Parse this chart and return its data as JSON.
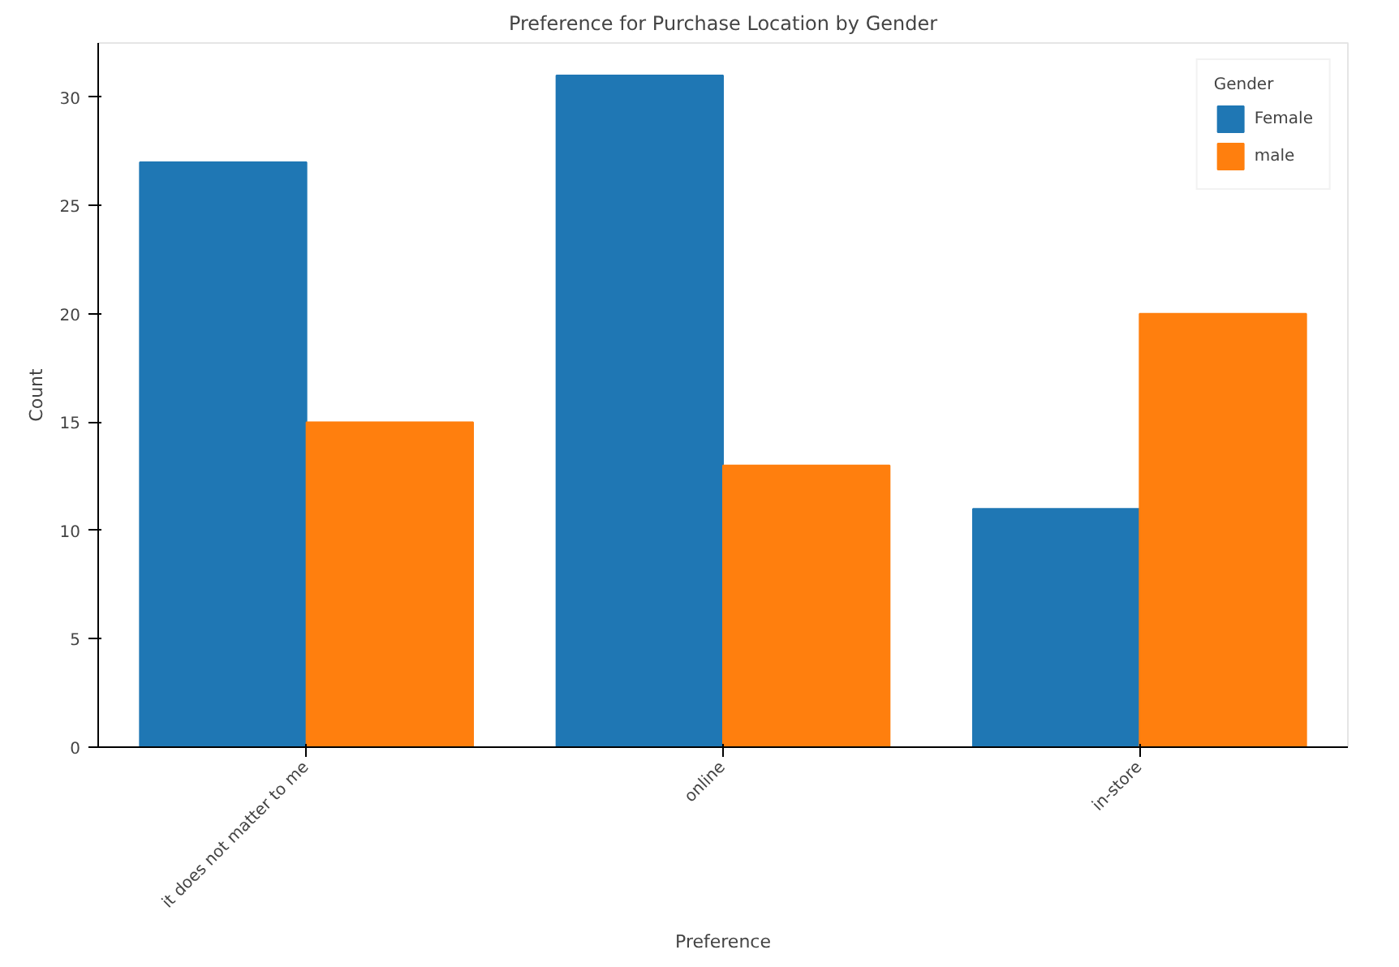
{
  "chart_data": {
    "type": "bar",
    "title": "Preference for Purchase Location by Gender",
    "xlabel": "Preference",
    "ylabel": "Count",
    "legend_title": "Gender",
    "categories": [
      "it does not matter to me",
      "online",
      "in-store"
    ],
    "series": [
      {
        "name": "Female",
        "color": "#1f77b4",
        "values": [
          27,
          31,
          11
        ]
      },
      {
        "name": "male",
        "color": "#ff7f0e",
        "values": [
          15,
          13,
          20
        ]
      }
    ],
    "ylim": [
      0,
      32.5
    ],
    "yticks": [
      0,
      5,
      10,
      15,
      20,
      25,
      30
    ],
    "grid": false,
    "legend": "top right"
  }
}
